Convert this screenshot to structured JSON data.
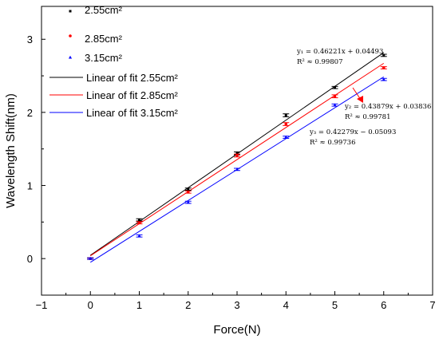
{
  "chart_data": {
    "type": "scatter",
    "xlabel": "Force(N)",
    "ylabel": "Wavelength Shift(nm)",
    "xlim": [
      -1,
      7
    ],
    "ylim": [
      -0.5,
      3.45
    ],
    "x_ticks": [
      "−1",
      "0",
      "1",
      "2",
      "3",
      "4",
      "5",
      "6",
      "7"
    ],
    "x_tick_values": [
      -1,
      0,
      1,
      2,
      3,
      4,
      5,
      6,
      7
    ],
    "y_ticks": [
      "0",
      "1",
      "2",
      "3"
    ],
    "y_tick_values": [
      0,
      1,
      2,
      3
    ],
    "grid": false,
    "legend_position": "top-left",
    "x": [
      0,
      1,
      2,
      3,
      4,
      5,
      6
    ],
    "series": [
      {
        "name": "2.55cm²",
        "fit_name": "Linear of fit 2.55cm²",
        "marker": "square",
        "color": "#000000",
        "values": [
          0,
          0.53,
          0.95,
          1.44,
          1.96,
          2.34,
          2.78
        ],
        "error": [
          0.01,
          0.015,
          0.015,
          0.02,
          0.02,
          0.015,
          0.015
        ],
        "fit": {
          "slope": 0.46221,
          "intercept": 0.04493,
          "x_range": [
            0,
            6
          ]
        },
        "equation": "y₁ = 0.46221x + 0.04493",
        "r2": "R² ≈ 0.99807"
      },
      {
        "name": "2.85cm²",
        "fit_name": "Linear of fit 2.85cm²",
        "marker": "circle",
        "color": "#ff0000",
        "values": [
          0,
          0.49,
          0.91,
          1.41,
          1.84,
          2.22,
          2.61
        ],
        "error": [
          0.01,
          0.015,
          0.015,
          0.02,
          0.02,
          0.02,
          0.015
        ],
        "fit": {
          "slope": 0.43879,
          "intercept": 0.03836,
          "x_range": [
            0,
            6
          ]
        },
        "equation": "y₂ = 0.43879x + 0.03836",
        "r2": "R² ≈ 0.99781"
      },
      {
        "name": "3.15cm²",
        "fit_name": "Linear of fit 3.15cm²",
        "marker": "triangle",
        "color": "#0000ff",
        "values": [
          0,
          0.31,
          0.77,
          1.22,
          1.66,
          2.1,
          2.45
        ],
        "error": [
          0.01,
          0.015,
          0.015,
          0.015,
          0.015,
          0.015,
          0.015
        ],
        "fit": {
          "slope": 0.42279,
          "intercept": -0.05093,
          "x_range": [
            0,
            6
          ]
        },
        "equation": "y₃ = 0.42279x − 0.05093",
        "r2": "R² ≈ 0.99736"
      }
    ]
  }
}
